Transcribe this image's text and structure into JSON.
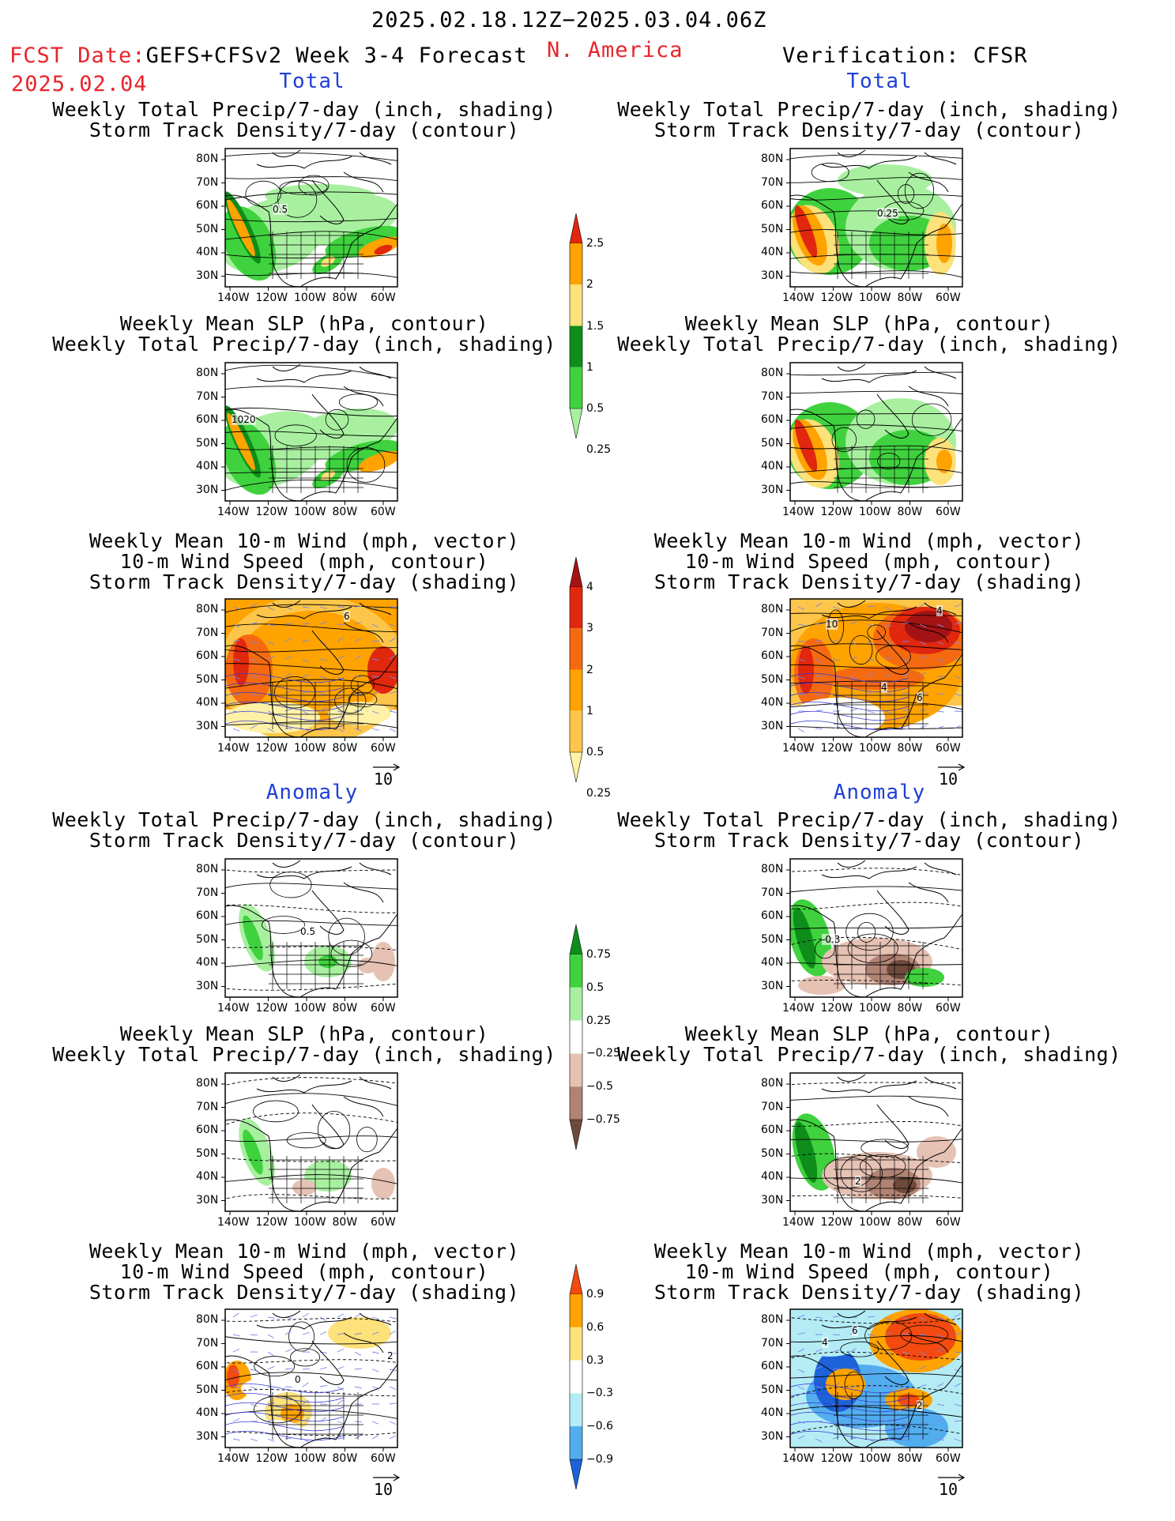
{
  "header": {
    "date_range": "2025.02.18.12Z−2025.03.04.06Z",
    "fcst_date_label": "FCST Date:",
    "fcst_model": "GEFS+CFSv2 Week 3-4 Forecast",
    "fcst_date": "2025.02.04",
    "region": "N. America",
    "verification": "Verification: CFSR"
  },
  "sections": {
    "total": "Total",
    "anomaly": "Anomaly"
  },
  "titles": {
    "precip_storm": [
      "Weekly Total Precip/7-day (inch, shading)",
      "Storm Track Density/7-day (contour)"
    ],
    "slp_precip": [
      "Weekly Mean SLP (hPa, contour)",
      "Weekly Total Precip/7-day (inch, shading)"
    ],
    "wind_storm": [
      "Weekly Mean 10-m Wind (mph, vector)",
      "10-m Wind Speed (mph, contour)",
      "Storm Track Density/7-day (shading)"
    ]
  },
  "axes": {
    "lat_ticks": [
      "80N",
      "70N",
      "60N",
      "50N",
      "40N",
      "30N"
    ],
    "lon_ticks": [
      "140W",
      "120W",
      "100W",
      "80W",
      "60W"
    ]
  },
  "vector_ref": "10",
  "contour_labels": {
    "f_precip_total": "0.5",
    "v_precip_total": "0.25",
    "f_slp_total": "1020",
    "f_wind_total": "6",
    "v_wind_total_a": "10",
    "v_wind_total_b": "4",
    "v_wind_total_c": "4",
    "v_wind_total_d": "6",
    "f_precip_anom": "0.5",
    "v_precip_anom": "-0.3",
    "f_wind_anom_a": "0",
    "f_wind_anom_b": "2",
    "v_slp_anom": "2",
    "v_wind_anom_a": "4",
    "v_wind_anom_b": "6",
    "v_wind_anom_c": "2"
  },
  "colorbars": {
    "precip_total": {
      "labels": [
        "2.5",
        "2",
        "1.5",
        "1",
        "0.5",
        "0.25"
      ],
      "colors": [
        "#e1270e",
        "#ffa300",
        "#fde17a",
        "#0e8d1a",
        "#3fd23e",
        "#a8f0a0"
      ]
    },
    "storm_total": {
      "labels": [
        "4",
        "3",
        "2",
        "1",
        "0.5",
        "0.25"
      ],
      "colors": [
        "#a31313",
        "#e1270e",
        "#f56a10",
        "#ffa300",
        "#fdc64a",
        "#fff2a6"
      ]
    },
    "precip_anom": {
      "labels": [
        "0.75",
        "0.5",
        "0.25",
        "−0.25",
        "−0.5",
        "−0.75"
      ],
      "colors": [
        "#0e8d1a",
        "#3fd23e",
        "#a8f0a0",
        "#ffffff",
        "#e6c2b4",
        "#b08374",
        "#6e4a3c"
      ]
    },
    "storm_anom": {
      "labels": [
        "0.9",
        "0.6",
        "0.3",
        "−0.3",
        "−0.6",
        "−0.9"
      ],
      "colors": [
        "#f24a10",
        "#ffa300",
        "#fde17a",
        "#ffffff",
        "#b4ecf5",
        "#52adef",
        "#1d62d8"
      ]
    }
  }
}
